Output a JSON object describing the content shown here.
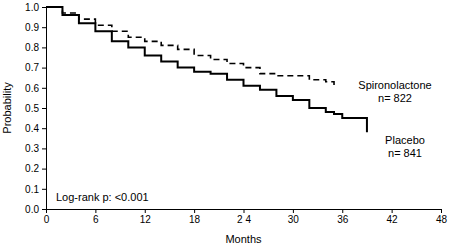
{
  "chart_data": {
    "type": "line",
    "x_label": "Months",
    "y_label": "Probability",
    "annotations": [
      "Log-rank p: <0.001",
      "n= 822",
      "n= 841"
    ],
    "x": [
      0,
      2,
      4,
      6,
      8,
      10,
      12,
      14,
      16,
      18,
      20,
      22,
      24,
      26,
      28,
      30,
      32,
      34,
      35,
      36,
      38,
      39
    ],
    "series": [
      {
        "name": "Spironolactone",
        "color": "#000000",
        "line_style": "dashed",
        "values": [
          1.0,
          0.97,
          0.94,
          0.91,
          0.88,
          0.85,
          0.83,
          0.81,
          0.79,
          0.76,
          0.74,
          0.72,
          0.7,
          0.67,
          0.66,
          0.66,
          0.64,
          0.63,
          0.61,
          null,
          null,
          null
        ]
      },
      {
        "name": "Placebo",
        "color": "#000000",
        "line_style": "solid",
        "values": [
          1.0,
          0.96,
          0.92,
          0.88,
          0.83,
          0.8,
          0.76,
          0.73,
          0.7,
          0.68,
          0.67,
          0.64,
          0.61,
          0.59,
          0.56,
          0.54,
          0.5,
          0.48,
          0.47,
          0.45,
          0.45,
          0.38
        ]
      }
    ],
    "xlim": [
      0,
      48
    ],
    "xticks": [
      0,
      6,
      12,
      18,
      {
        "value": 24,
        "label": "2 4"
      },
      30,
      36,
      42,
      48
    ],
    "ylim": [
      0,
      1
    ],
    "yticks": [
      {
        "value": 0,
        "label": "0.0"
      },
      0.1,
      0.2,
      0.3,
      0.4,
      0.5,
      0.6,
      0.7,
      0.8,
      0.9,
      {
        "value": 1,
        "label": "1.0"
      }
    ],
    "grid": false
  }
}
